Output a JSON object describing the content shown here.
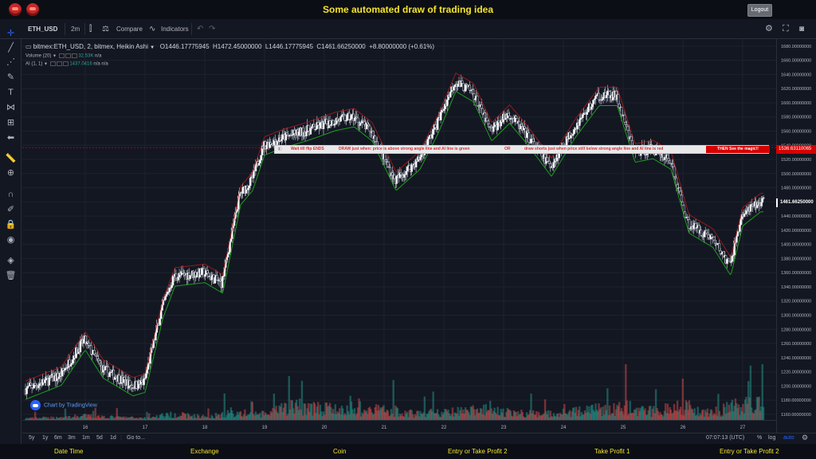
{
  "header": {
    "title": "Some automated draw of trading idea",
    "logout_label": "Logout"
  },
  "toolbar": {
    "symbol": "ETH_USD",
    "interval": "2m",
    "compare_label": "Compare",
    "indicators_label": "Indicators"
  },
  "legend": {
    "title": "bitmex:ETH_USD, 2, bitmex, Heikin Ashi",
    "open": "O1446.17775945",
    "high": "H1472.45000000",
    "low": "L1446.17775945",
    "close": "C1461.66250000",
    "change": "+8.80000000 (+0.61%)",
    "volume_label": "Volume (20)",
    "volume_value": "32.53K",
    "volume_na": "n/a",
    "ai_label": "AI (1, 1)",
    "ai_value": "1437.0416",
    "ai_na1": "n/a",
    "ai_na2": "n/a"
  },
  "banner": {
    "text1": "Wait till flip ENDS",
    "text2": "DRAW just when:  price is above strong angle line and AI line is green",
    "text3": "OR",
    "text4": "draw shorts just when price still below strong angle line and AI line is red",
    "button": "THEN See the magic!!"
  },
  "price_labels": {
    "banner_price": "1536.63110065",
    "last_price": "1461.66250000"
  },
  "watermark": "Chart by TradingView",
  "bottom": {
    "ranges": [
      "5y",
      "1y",
      "6m",
      "3m",
      "1m",
      "5d",
      "1d"
    ],
    "goto": "Go to...",
    "clock": "07:07:13 (UTC)",
    "percent": "%",
    "log": "log",
    "auto": "auto"
  },
  "footer": {
    "items": [
      "Date Time",
      "Exchange",
      "Coin",
      "Entry or Take Profit 2",
      "Take Profit 1",
      "Entry or Take Profit 2"
    ]
  },
  "colors": {
    "up": "#26a69a",
    "down": "#ef5350",
    "accent": "#f5e52b"
  },
  "chart_data": {
    "type": "candlestick",
    "title": "bitmex:ETH_USD, 2, bitmex, Heikin Ashi",
    "x_ticks": [
      "16",
      "17",
      "18",
      "19",
      "20",
      "21",
      "22",
      "23",
      "24",
      "25",
      "26",
      "27"
    ],
    "y_ticks": [
      "1680.00000000",
      "1660.00000000",
      "1640.00000000",
      "1620.00000000",
      "1600.00000000",
      "1580.00000000",
      "1560.00000000",
      "1540.00000000",
      "1520.00000000",
      "1500.00000000",
      "1480.00000000",
      "1460.00000000",
      "1440.00000000",
      "1420.00000000",
      "1400.00000000",
      "1380.00000000",
      "1360.00000000",
      "1340.00000000",
      "1320.00000000",
      "1300.00000000",
      "1280.00000000",
      "1260.00000000",
      "1240.00000000",
      "1220.00000000",
      "1200.00000000",
      "1180.00000000",
      "1160.00000000"
    ],
    "ylim": [
      1152,
      1690
    ],
    "close_path": [
      [
        15.0,
        1195
      ],
      [
        15.6,
        1215
      ],
      [
        16.0,
        1265
      ],
      [
        16.3,
        1225
      ],
      [
        16.8,
        1200
      ],
      [
        17.0,
        1205
      ],
      [
        17.3,
        1310
      ],
      [
        17.5,
        1355
      ],
      [
        18.0,
        1360
      ],
      [
        18.3,
        1345
      ],
      [
        18.6,
        1470
      ],
      [
        18.8,
        1490
      ],
      [
        19.0,
        1540
      ],
      [
        19.3,
        1550
      ],
      [
        19.7,
        1560
      ],
      [
        20.2,
        1575
      ],
      [
        20.5,
        1580
      ],
      [
        20.8,
        1560
      ],
      [
        21.2,
        1490
      ],
      [
        21.6,
        1520
      ],
      [
        21.9,
        1570
      ],
      [
        22.2,
        1630
      ],
      [
        22.5,
        1615
      ],
      [
        22.8,
        1560
      ],
      [
        23.1,
        1585
      ],
      [
        23.4,
        1555
      ],
      [
        23.8,
        1510
      ],
      [
        24.2,
        1565
      ],
      [
        24.6,
        1610
      ],
      [
        24.9,
        1610
      ],
      [
        25.2,
        1530
      ],
      [
        25.5,
        1535
      ],
      [
        25.8,
        1520
      ],
      [
        26.1,
        1430
      ],
      [
        26.5,
        1410
      ],
      [
        26.8,
        1370
      ],
      [
        27.0,
        1440
      ],
      [
        27.3,
        1460
      ]
    ],
    "volume": [
      [
        15,
        4
      ],
      [
        15.5,
        6
      ],
      [
        16,
        10
      ],
      [
        16.5,
        7
      ],
      [
        17,
        5
      ],
      [
        17.5,
        14
      ],
      [
        18,
        8
      ],
      [
        18.5,
        18
      ],
      [
        19,
        14
      ],
      [
        19.5,
        36
      ],
      [
        20,
        28
      ],
      [
        20.5,
        22
      ],
      [
        21,
        27
      ],
      [
        21.5,
        16
      ],
      [
        22,
        18
      ],
      [
        22.5,
        24
      ],
      [
        23,
        20
      ],
      [
        23.5,
        15
      ],
      [
        24,
        18
      ],
      [
        24.5,
        26
      ],
      [
        25,
        32
      ],
      [
        25.5,
        22
      ],
      [
        26,
        36
      ],
      [
        26.5,
        20
      ],
      [
        27,
        38
      ]
    ],
    "volume_ylim": [
      0,
      130
    ],
    "grid": true
  }
}
